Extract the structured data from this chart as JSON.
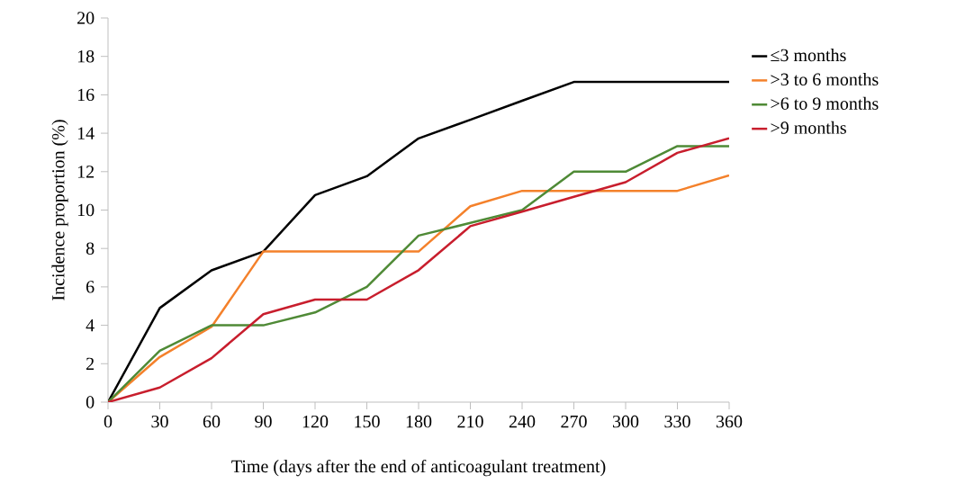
{
  "chart_data": {
    "type": "line",
    "xlabel": "Time (days after the end of anticoagulant treatment)",
    "ylabel": "Incidence proportion (%)",
    "x": [
      0,
      30,
      60,
      90,
      120,
      150,
      180,
      210,
      240,
      270,
      300,
      330,
      360
    ],
    "xlim": [
      0,
      360
    ],
    "xticks": [
      0,
      30,
      60,
      90,
      120,
      150,
      180,
      210,
      240,
      270,
      300,
      330,
      360
    ],
    "ylim": [
      0,
      20
    ],
    "yticks": [
      0,
      2,
      4,
      6,
      8,
      10,
      12,
      14,
      16,
      18,
      20
    ],
    "grid": false,
    "legend": "right",
    "marker": "none",
    "line_style": "solid",
    "series": [
      {
        "name": "≤3 months",
        "color": "#000000",
        "values": [
          0,
          4.9,
          6.86,
          7.84,
          10.78,
          11.76,
          13.73,
          14.7,
          15.69,
          16.67,
          16.67,
          16.67,
          16.67
        ]
      },
      {
        "name": ">3 to 6 months",
        "color": "#f4812b",
        "values": [
          0,
          2.35,
          3.92,
          7.84,
          7.84,
          7.84,
          7.84,
          10.2,
          11.0,
          11.0,
          11.0,
          11.0,
          11.8
        ]
      },
      {
        "name": ">6 to 9 months",
        "color": "#4f8a36",
        "values": [
          0,
          2.67,
          4.0,
          4.0,
          4.67,
          6.0,
          8.67,
          9.33,
          10.0,
          12.0,
          12.0,
          13.33,
          13.33
        ]
      },
      {
        "name": ">9 months",
        "color": "#c81e2d",
        "values": [
          0,
          0.76,
          2.29,
          4.58,
          5.34,
          5.34,
          6.87,
          9.16,
          9.92,
          10.69,
          11.45,
          12.98,
          13.74
        ]
      }
    ]
  }
}
